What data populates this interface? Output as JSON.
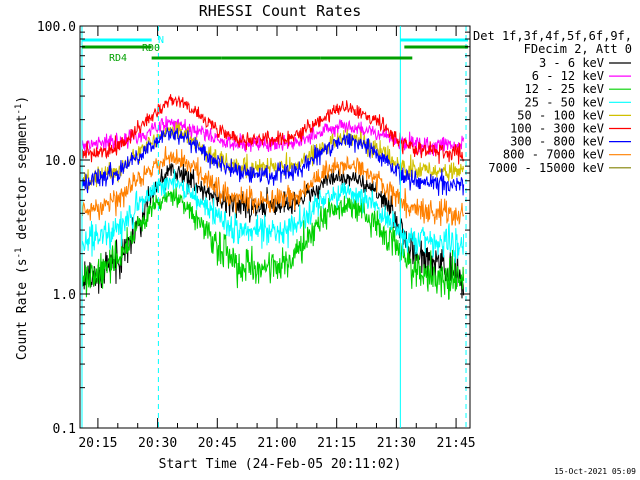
{
  "chart_data": {
    "type": "line",
    "title": "RHESSI Count Rates",
    "ylabel_parts": [
      "Count Rate (s",
      "-1",
      " detector segment",
      "-1",
      ")"
    ],
    "xlabel": "Start Time (24-Feb-05 20:11:02)",
    "timestamp": "15-Oct-2021 05:09",
    "x_range_minutes": [
      10.5,
      108.5
    ],
    "y_log": true,
    "ylim": [
      0.1,
      100
    ],
    "x_ticks": [
      {
        "m": 15,
        "label": "20:15"
      },
      {
        "m": 30,
        "label": "20:30"
      },
      {
        "m": 45,
        "label": "20:45"
      },
      {
        "m": 60,
        "label": "21:00"
      },
      {
        "m": 75,
        "label": "21:15"
      },
      {
        "m": 90,
        "label": "21:30"
      },
      {
        "m": 105,
        "label": "21:45"
      }
    ],
    "y_ticks": [
      {
        "v": 0.1,
        "label": "0.1"
      },
      {
        "v": 1,
        "label": "1.0"
      },
      {
        "v": 10,
        "label": "10.0"
      },
      {
        "v": 100,
        "label": "100.0"
      }
    ],
    "legend_header": [
      "Det 1f,3f,4f,5f,6f,9f,",
      "FDecim 2, Att 0"
    ],
    "series": [
      {
        "name": "3 - 6 keV",
        "color": "#000000",
        "points": [
          [
            11,
            1.2
          ],
          [
            20,
            1.8
          ],
          [
            26,
            3.5
          ],
          [
            30,
            6.5
          ],
          [
            33,
            8.5
          ],
          [
            36,
            8.0
          ],
          [
            40,
            6.5
          ],
          [
            45,
            5.2
          ],
          [
            50,
            4.6
          ],
          [
            55,
            4.4
          ],
          [
            60,
            4.6
          ],
          [
            65,
            4.9
          ],
          [
            69,
            5.8
          ],
          [
            72,
            7.0
          ],
          [
            76,
            7.6
          ],
          [
            80,
            7.2
          ],
          [
            84,
            6.0
          ],
          [
            88,
            4.6
          ],
          [
            91,
            3.0
          ],
          [
            95,
            1.9
          ],
          [
            100,
            1.7
          ],
          [
            105,
            1.4
          ],
          [
            107,
            1.2
          ]
        ]
      },
      {
        "name": "6 - 12 keV",
        "color": "#ff00ff",
        "points": [
          [
            11,
            13
          ],
          [
            20,
            13.5
          ],
          [
            25,
            15
          ],
          [
            30,
            17.5
          ],
          [
            33,
            19
          ],
          [
            36,
            18.5
          ],
          [
            40,
            16.5
          ],
          [
            45,
            14.2
          ],
          [
            50,
            13.5
          ],
          [
            55,
            13.3
          ],
          [
            60,
            13.4
          ],
          [
            65,
            13.8
          ],
          [
            70,
            15.5
          ],
          [
            74,
            17.5
          ],
          [
            77,
            18
          ],
          [
            81,
            17
          ],
          [
            86,
            15.5
          ],
          [
            90,
            13.8
          ],
          [
            95,
            13
          ],
          [
            100,
            12.8
          ],
          [
            107,
            12.8
          ]
        ]
      },
      {
        "name": "12 - 25 keV",
        "color": "#00d000",
        "points": [
          [
            11,
            1.3
          ],
          [
            20,
            1.8
          ],
          [
            25,
            3.0
          ],
          [
            30,
            4.6
          ],
          [
            33,
            5.4
          ],
          [
            36,
            5.0
          ],
          [
            40,
            3.5
          ],
          [
            45,
            2.3
          ],
          [
            50,
            1.6
          ],
          [
            55,
            1.5
          ],
          [
            60,
            1.6
          ],
          [
            65,
            2.0
          ],
          [
            70,
            3.2
          ],
          [
            74,
            4.3
          ],
          [
            77,
            4.6
          ],
          [
            81,
            4.2
          ],
          [
            85,
            3.4
          ],
          [
            89,
            2.4
          ],
          [
            93,
            1.7
          ],
          [
            98,
            1.4
          ],
          [
            103,
            1.3
          ],
          [
            107,
            1.3
          ]
        ]
      },
      {
        "name": "25 - 50 keV",
        "color": "#00ffff",
        "points": [
          [
            11,
            2.4
          ],
          [
            20,
            3.0
          ],
          [
            25,
            4.5
          ],
          [
            30,
            6.4
          ],
          [
            33,
            7.0
          ],
          [
            36,
            6.6
          ],
          [
            40,
            5.0
          ],
          [
            45,
            3.8
          ],
          [
            50,
            3.0
          ],
          [
            55,
            2.9
          ],
          [
            60,
            2.9
          ],
          [
            65,
            3.3
          ],
          [
            70,
            4.6
          ],
          [
            74,
            5.5
          ],
          [
            77,
            5.8
          ],
          [
            81,
            5.4
          ],
          [
            85,
            4.4
          ],
          [
            89,
            3.3
          ],
          [
            93,
            2.6
          ],
          [
            98,
            2.5
          ],
          [
            103,
            2.4
          ],
          [
            107,
            2.3
          ]
        ]
      },
      {
        "name": "50 - 100 keV",
        "color": "#d0c000",
        "points": [
          [
            11,
            7.0
          ],
          [
            20,
            8.0
          ],
          [
            25,
            11
          ],
          [
            30,
            15
          ],
          [
            33,
            17
          ],
          [
            36,
            16.3
          ],
          [
            40,
            13
          ],
          [
            45,
            10.2
          ],
          [
            50,
            9.0
          ],
          [
            55,
            8.6
          ],
          [
            60,
            8.7
          ],
          [
            65,
            9.2
          ],
          [
            70,
            11.5
          ],
          [
            74,
            13.5
          ],
          [
            77,
            14.5
          ],
          [
            81,
            13.8
          ],
          [
            85,
            12
          ],
          [
            89,
            9.8
          ],
          [
            93,
            8.6
          ],
          [
            98,
            8.2
          ],
          [
            103,
            8.1
          ],
          [
            107,
            8.0
          ]
        ]
      },
      {
        "name": "100 - 300 keV",
        "color": "#ff0000",
        "points": [
          [
            11,
            11
          ],
          [
            20,
            12.5
          ],
          [
            25,
            17
          ],
          [
            30,
            24
          ],
          [
            33,
            28
          ],
          [
            36,
            27
          ],
          [
            40,
            22
          ],
          [
            45,
            17
          ],
          [
            50,
            14.5
          ],
          [
            55,
            14
          ],
          [
            60,
            14
          ],
          [
            65,
            15
          ],
          [
            70,
            19
          ],
          [
            74,
            23
          ],
          [
            77,
            25
          ],
          [
            81,
            23.5
          ],
          [
            86,
            19
          ],
          [
            90,
            14.5
          ],
          [
            95,
            12
          ],
          [
            100,
            11.5
          ],
          [
            107,
            11.2
          ]
        ]
      },
      {
        "name": "300 - 800 keV",
        "color": "#0000ff",
        "points": [
          [
            11,
            6.5
          ],
          [
            20,
            8.0
          ],
          [
            25,
            10.5
          ],
          [
            30,
            14
          ],
          [
            33,
            16
          ],
          [
            36,
            15.4
          ],
          [
            40,
            12.2
          ],
          [
            45,
            9.6
          ],
          [
            50,
            8.2
          ],
          [
            55,
            7.8
          ],
          [
            60,
            7.8
          ],
          [
            65,
            8.4
          ],
          [
            70,
            10.8
          ],
          [
            74,
            13.2
          ],
          [
            77,
            14.2
          ],
          [
            81,
            13.4
          ],
          [
            85,
            11.5
          ],
          [
            89,
            9.0
          ],
          [
            93,
            7.2
          ],
          [
            98,
            6.7
          ],
          [
            103,
            6.5
          ],
          [
            107,
            6.4
          ]
        ]
      },
      {
        "name": "800 - 7000 keV",
        "color": "#ff8000",
        "points": [
          [
            11,
            4.0
          ],
          [
            20,
            5.0
          ],
          [
            25,
            7.0
          ],
          [
            30,
            9.5
          ],
          [
            33,
            10.6
          ],
          [
            36,
            10.1
          ],
          [
            40,
            8.2
          ],
          [
            45,
            6.2
          ],
          [
            50,
            5.2
          ],
          [
            55,
            5.0
          ],
          [
            60,
            5.0
          ],
          [
            65,
            5.4
          ],
          [
            70,
            7.3
          ],
          [
            74,
            8.7
          ],
          [
            77,
            9.2
          ],
          [
            81,
            8.6
          ],
          [
            85,
            7.2
          ],
          [
            89,
            5.6
          ],
          [
            93,
            4.5
          ],
          [
            98,
            4.1
          ],
          [
            103,
            4.0
          ],
          [
            107,
            3.9
          ]
        ]
      },
      {
        "name": "7000 - 15000 keV",
        "color": "#808000",
        "points": []
      }
    ],
    "state_bars": {
      "N_label": "N",
      "RD0_label": "RD0",
      "RD4_label": "RD4",
      "N": [
        [
          11,
          28.5
        ],
        [
          91,
          108
        ]
      ],
      "RD0": [
        [
          11,
          28.5
        ],
        [
          92,
          108
        ]
      ],
      "RD4": [
        [
          28.5,
          46
        ],
        [
          46,
          71
        ],
        [
          71,
          94
        ]
      ]
    },
    "vlines": [
      {
        "m": 11,
        "style": "solid"
      },
      {
        "m": 30.2,
        "style": "dashed"
      },
      {
        "m": 91,
        "style": "solid"
      },
      {
        "m": 107.5,
        "style": "dashed"
      }
    ]
  }
}
